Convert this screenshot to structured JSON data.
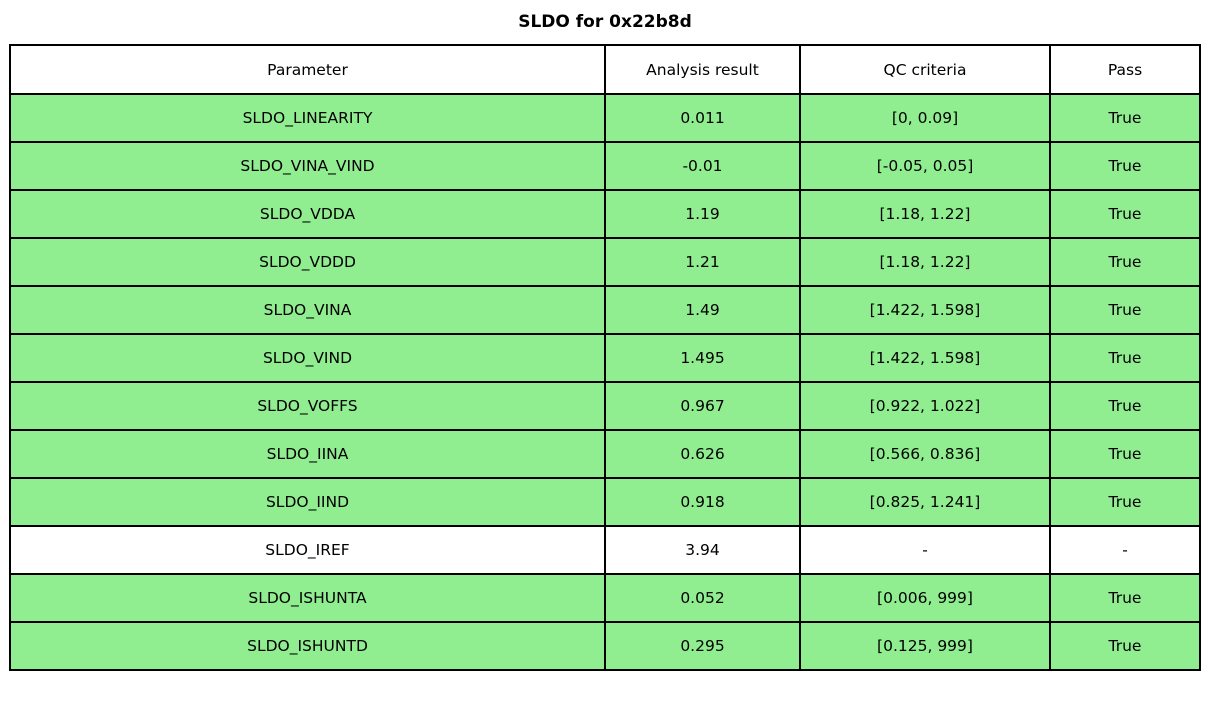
{
  "title": "SLDO for 0x22b8d",
  "colors": {
    "pass_row_green": "#90EE90",
    "neutral_row_white": "#FFFFFF",
    "border_black": "#000000",
    "background": "#FFFFFF"
  },
  "table": {
    "headers": [
      "Parameter",
      "Analysis result",
      "QC criteria",
      "Pass"
    ],
    "rows": [
      {
        "parameter": "SLDO_LINEARITY",
        "result": "0.011",
        "criteria": "[0, 0.09]",
        "pass": "True",
        "highlight": true
      },
      {
        "parameter": "SLDO_VINA_VIND",
        "result": "-0.01",
        "criteria": "[-0.05, 0.05]",
        "pass": "True",
        "highlight": true
      },
      {
        "parameter": "SLDO_VDDA",
        "result": "1.19",
        "criteria": "[1.18, 1.22]",
        "pass": "True",
        "highlight": true
      },
      {
        "parameter": "SLDO_VDDD",
        "result": "1.21",
        "criteria": "[1.18, 1.22]",
        "pass": "True",
        "highlight": true
      },
      {
        "parameter": "SLDO_VINA",
        "result": "1.49",
        "criteria": "[1.422, 1.598]",
        "pass": "True",
        "highlight": true
      },
      {
        "parameter": "SLDO_VIND",
        "result": "1.495",
        "criteria": "[1.422, 1.598]",
        "pass": "True",
        "highlight": true
      },
      {
        "parameter": "SLDO_VOFFS",
        "result": "0.967",
        "criteria": "[0.922, 1.022]",
        "pass": "True",
        "highlight": true
      },
      {
        "parameter": "SLDO_IINA",
        "result": "0.626",
        "criteria": "[0.566, 0.836]",
        "pass": "True",
        "highlight": true
      },
      {
        "parameter": "SLDO_IIND",
        "result": "0.918",
        "criteria": "[0.825, 1.241]",
        "pass": "True",
        "highlight": true
      },
      {
        "parameter": "SLDO_IREF",
        "result": "3.94",
        "criteria": "-",
        "pass": "-",
        "highlight": false
      },
      {
        "parameter": "SLDO_ISHUNTA",
        "result": "0.052",
        "criteria": "[0.006, 999]",
        "pass": "True",
        "highlight": true
      },
      {
        "parameter": "SLDO_ISHUNTD",
        "result": "0.295",
        "criteria": "[0.125, 999]",
        "pass": "True",
        "highlight": true
      }
    ]
  },
  "chart_data": {
    "type": "table",
    "title": "SLDO for 0x22b8d",
    "columns": [
      "Parameter",
      "Analysis result",
      "QC criteria",
      "Pass"
    ],
    "rows": [
      [
        "SLDO_LINEARITY",
        "0.011",
        "[0, 0.09]",
        "True"
      ],
      [
        "SLDO_VINA_VIND",
        "-0.01",
        "[-0.05, 0.05]",
        "True"
      ],
      [
        "SLDO_VDDA",
        "1.19",
        "[1.18, 1.22]",
        "True"
      ],
      [
        "SLDO_VDDD",
        "1.21",
        "[1.18, 1.22]",
        "True"
      ],
      [
        "SLDO_VINA",
        "1.49",
        "[1.422, 1.598]",
        "True"
      ],
      [
        "SLDO_VIND",
        "1.495",
        "[1.422, 1.598]",
        "True"
      ],
      [
        "SLDO_VOFFS",
        "0.967",
        "[0.922, 1.022]",
        "True"
      ],
      [
        "SLDO_IINA",
        "0.626",
        "[0.566, 0.836]",
        "True"
      ],
      [
        "SLDO_IIND",
        "0.918",
        "[0.825, 1.241]",
        "True"
      ],
      [
        "SLDO_IREF",
        "3.94",
        "-",
        "-"
      ],
      [
        "SLDO_ISHUNTA",
        "0.052",
        "[0.006, 999]",
        "True"
      ],
      [
        "SLDO_ISHUNTD",
        "0.295",
        "[0.125, 999]",
        "True"
      ]
    ],
    "layout_hints": {
      "row_fill_pass": "#90EE90",
      "row_fill_neutral": "#FFFFFF",
      "grid": true,
      "title_position": "top-center"
    }
  }
}
